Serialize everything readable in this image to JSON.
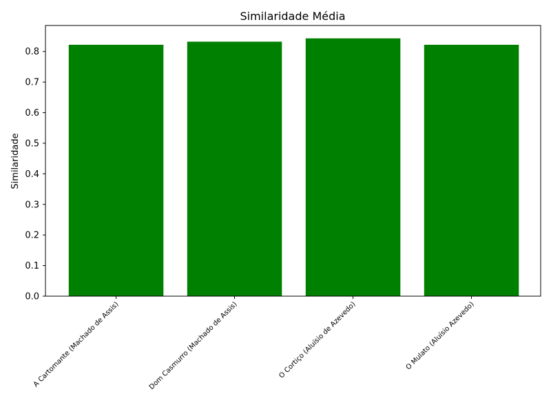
{
  "chart_data": {
    "type": "bar",
    "title": "Similaridade Média",
    "xlabel": "",
    "ylabel": "Similaridade",
    "categories": [
      "A Cartomante (Machado de Assis)",
      "Dom Casmurro (Machado de Assis)",
      "O Cortiço (Aluísio de Azevedo)",
      "O Mulato (Aluísio Azevedo)"
    ],
    "values": [
      0.822,
      0.832,
      0.843,
      0.822
    ],
    "ylim": [
      0,
      0.885
    ],
    "yticks": [
      0.0,
      0.1,
      0.2,
      0.3,
      0.4,
      0.5,
      0.6,
      0.7,
      0.8
    ],
    "ytick_labels": [
      "0.0",
      "0.1",
      "0.2",
      "0.3",
      "0.4",
      "0.5",
      "0.6",
      "0.7",
      "0.8"
    ],
    "bar_color": "#008000",
    "grid": false,
    "legend": false
  }
}
